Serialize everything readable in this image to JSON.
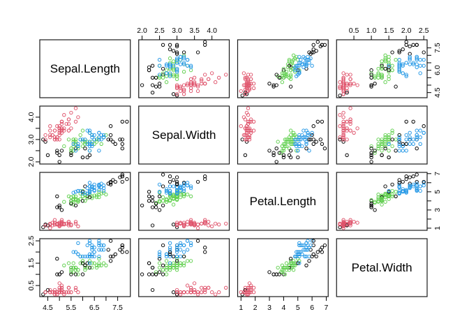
{
  "chart_data": {
    "type": "scatter",
    "subtype": "scatterplot-matrix",
    "title": "",
    "variables": [
      "Sepal.Length",
      "Sepal.Width",
      "Petal.Length",
      "Petal.Width"
    ],
    "grid": {
      "rows": 4,
      "cols": 4
    },
    "axis_ranges": [
      [
        4.156,
        8.044
      ],
      [
        1.904,
        4.496
      ],
      [
        0.764,
        7.136
      ],
      [
        0.004,
        2.596
      ]
    ],
    "axes": [
      {
        "side": "top",
        "col": 1,
        "row": 0,
        "ticks": [
          2.0,
          2.5,
          3.0,
          3.5,
          4.0
        ],
        "labels": [
          "2.0",
          "2.5",
          "3.0",
          "3.5",
          "4.0"
        ]
      },
      {
        "side": "top",
        "col": 3,
        "row": 0,
        "ticks": [
          0.5,
          1.0,
          1.5,
          2.0,
          2.5
        ],
        "labels": [
          "0.5",
          "1.0",
          "1.5",
          "2.0",
          "2.5"
        ]
      },
      {
        "side": "bottom",
        "col": 0,
        "row": 3,
        "ticks": [
          4.5,
          5.0,
          5.5,
          6.0,
          6.5,
          7.0,
          7.5
        ],
        "labels": [
          "4.5",
          "",
          "5.5",
          "",
          "6.5",
          "",
          "7.5"
        ]
      },
      {
        "side": "bottom",
        "col": 2,
        "row": 3,
        "ticks": [
          1,
          2,
          3,
          4,
          5,
          6,
          7
        ],
        "labels": [
          "1",
          "2",
          "3",
          "4",
          "5",
          "6",
          "7"
        ]
      },
      {
        "side": "right",
        "col": 3,
        "row": 0,
        "ticks": [
          4.5,
          5.0,
          5.5,
          6.0,
          6.5,
          7.0,
          7.5
        ],
        "labels": [
          "4.5",
          "",
          "",
          "6.0",
          "",
          "",
          "7.5"
        ]
      },
      {
        "side": "left",
        "col": 0,
        "row": 1,
        "ticks": [
          2.0,
          2.5,
          3.0,
          3.5,
          4.0
        ],
        "labels": [
          "2.0",
          "",
          "3.0",
          "",
          "4.0"
        ]
      },
      {
        "side": "right",
        "col": 3,
        "row": 2,
        "ticks": [
          1,
          2,
          3,
          4,
          5,
          6,
          7
        ],
        "labels": [
          "1",
          "",
          "3",
          "",
          "5",
          "",
          "7"
        ]
      },
      {
        "side": "left",
        "col": 0,
        "row": 3,
        "ticks": [
          0.5,
          1.0,
          1.5,
          2.0,
          2.5
        ],
        "labels": [
          "0.5",
          "",
          "1.5",
          "",
          "2.5"
        ]
      }
    ],
    "point_style": {
      "shape": "open-circle",
      "radius": 2.2,
      "stroke_width": 0.95
    },
    "panel_border_color": "#1b1b1b",
    "tick_color": "#000000",
    "label_color": "#000000",
    "group_colors": [
      "#000000",
      "#DF536B",
      "#61D04F",
      "#2297E6"
    ],
    "points": [
      [
        5.1,
        3.5,
        1.4,
        0.2,
        1
      ],
      [
        4.9,
        3.0,
        1.4,
        0.2,
        1
      ],
      [
        4.7,
        3.2,
        1.3,
        0.2,
        1
      ],
      [
        4.6,
        3.1,
        1.5,
        0.2,
        1
      ],
      [
        5.0,
        3.6,
        1.4,
        0.2,
        1
      ],
      [
        5.4,
        3.9,
        1.7,
        0.4,
        1
      ],
      [
        4.6,
        3.4,
        1.4,
        0.3,
        1
      ],
      [
        5.0,
        3.4,
        1.5,
        0.2,
        1
      ],
      [
        4.4,
        2.9,
        1.4,
        0.2,
        0
      ],
      [
        4.9,
        3.1,
        1.5,
        0.1,
        1
      ],
      [
        5.4,
        3.7,
        1.5,
        0.2,
        1
      ],
      [
        4.8,
        3.4,
        1.6,
        0.2,
        1
      ],
      [
        4.8,
        3.0,
        1.4,
        0.1,
        1
      ],
      [
        4.3,
        3.0,
        1.1,
        0.1,
        0
      ],
      [
        5.8,
        4.0,
        1.2,
        0.2,
        1
      ],
      [
        5.7,
        4.4,
        1.5,
        0.4,
        1
      ],
      [
        5.4,
        3.9,
        1.3,
        0.4,
        1
      ],
      [
        5.1,
        3.5,
        1.4,
        0.3,
        1
      ],
      [
        5.7,
        3.8,
        1.7,
        0.3,
        1
      ],
      [
        5.1,
        3.8,
        1.5,
        0.3,
        1
      ],
      [
        5.4,
        3.4,
        1.7,
        0.2,
        1
      ],
      [
        5.1,
        3.7,
        1.5,
        0.4,
        1
      ],
      [
        4.6,
        3.6,
        1.0,
        0.2,
        1
      ],
      [
        5.1,
        3.3,
        1.7,
        0.5,
        1
      ],
      [
        4.8,
        3.4,
        1.9,
        0.2,
        1
      ],
      [
        5.0,
        3.0,
        1.6,
        0.2,
        1
      ],
      [
        5.0,
        3.4,
        1.6,
        0.4,
        1
      ],
      [
        5.2,
        3.5,
        1.5,
        0.2,
        1
      ],
      [
        5.2,
        3.4,
        1.4,
        0.2,
        1
      ],
      [
        4.7,
        3.2,
        1.6,
        0.2,
        1
      ],
      [
        4.8,
        3.1,
        1.6,
        0.2,
        1
      ],
      [
        5.4,
        3.4,
        1.5,
        0.4,
        1
      ],
      [
        5.2,
        4.1,
        1.5,
        0.1,
        1
      ],
      [
        5.5,
        4.2,
        1.4,
        0.2,
        1
      ],
      [
        4.9,
        3.1,
        1.5,
        0.2,
        1
      ],
      [
        5.0,
        3.2,
        1.2,
        0.2,
        1
      ],
      [
        5.5,
        3.5,
        1.3,
        0.2,
        1
      ],
      [
        4.9,
        3.6,
        1.4,
        0.1,
        1
      ],
      [
        4.4,
        3.0,
        1.3,
        0.2,
        1
      ],
      [
        5.1,
        3.4,
        1.5,
        0.2,
        1
      ],
      [
        5.0,
        3.5,
        1.3,
        0.3,
        1
      ],
      [
        4.5,
        2.3,
        1.3,
        0.3,
        0
      ],
      [
        4.4,
        3.2,
        1.3,
        0.2,
        1
      ],
      [
        5.0,
        3.5,
        1.6,
        0.6,
        1
      ],
      [
        5.1,
        3.8,
        1.9,
        0.4,
        1
      ],
      [
        4.8,
        3.0,
        1.4,
        0.3,
        1
      ],
      [
        5.1,
        3.8,
        1.6,
        0.2,
        1
      ],
      [
        4.6,
        3.2,
        1.4,
        0.2,
        1
      ],
      [
        5.3,
        3.7,
        1.5,
        0.2,
        1
      ],
      [
        5.0,
        3.3,
        1.4,
        0.2,
        1
      ],
      [
        7.0,
        3.2,
        4.7,
        1.4,
        2
      ],
      [
        6.4,
        3.2,
        4.5,
        1.5,
        2
      ],
      [
        6.9,
        3.1,
        4.9,
        1.5,
        2
      ],
      [
        5.5,
        2.3,
        4.0,
        1.3,
        0
      ],
      [
        6.5,
        2.8,
        4.6,
        1.5,
        2
      ],
      [
        5.7,
        2.8,
        4.5,
        1.3,
        2
      ],
      [
        6.3,
        3.3,
        4.7,
        1.6,
        2
      ],
      [
        4.9,
        2.4,
        3.3,
        1.0,
        0
      ],
      [
        6.6,
        2.9,
        4.6,
        1.3,
        2
      ],
      [
        5.2,
        2.7,
        3.9,
        1.4,
        2
      ],
      [
        5.0,
        2.0,
        3.5,
        1.0,
        0
      ],
      [
        5.9,
        3.0,
        4.2,
        1.5,
        2
      ],
      [
        6.0,
        2.2,
        4.0,
        1.0,
        0
      ],
      [
        6.1,
        2.9,
        4.7,
        1.4,
        2
      ],
      [
        5.6,
        2.9,
        3.6,
        1.3,
        2
      ],
      [
        6.7,
        3.1,
        4.4,
        1.4,
        2
      ],
      [
        5.6,
        3.0,
        4.5,
        1.5,
        2
      ],
      [
        5.8,
        2.7,
        4.1,
        1.0,
        2
      ],
      [
        6.2,
        2.2,
        4.5,
        1.5,
        0
      ],
      [
        5.6,
        2.5,
        3.9,
        1.1,
        2
      ],
      [
        5.9,
        3.2,
        4.8,
        1.8,
        2
      ],
      [
        6.1,
        2.8,
        4.0,
        1.3,
        2
      ],
      [
        6.3,
        2.5,
        4.9,
        1.5,
        2
      ],
      [
        6.1,
        2.8,
        4.7,
        1.2,
        2
      ],
      [
        6.4,
        2.9,
        4.3,
        1.3,
        2
      ],
      [
        6.6,
        3.0,
        4.4,
        1.4,
        2
      ],
      [
        6.8,
        2.8,
        4.8,
        1.4,
        2
      ],
      [
        6.7,
        3.0,
        5.0,
        1.7,
        2
      ],
      [
        6.0,
        2.9,
        4.5,
        1.5,
        2
      ],
      [
        5.7,
        2.6,
        3.5,
        1.0,
        0
      ],
      [
        5.5,
        2.4,
        3.8,
        1.1,
        2
      ],
      [
        5.5,
        2.4,
        3.7,
        1.0,
        0
      ],
      [
        5.8,
        2.7,
        3.9,
        1.2,
        2
      ],
      [
        6.0,
        2.7,
        5.1,
        1.6,
        2
      ],
      [
        5.4,
        3.0,
        4.5,
        1.5,
        2
      ],
      [
        6.0,
        3.4,
        4.5,
        1.6,
        2
      ],
      [
        6.7,
        3.1,
        4.7,
        1.5,
        2
      ],
      [
        6.3,
        2.3,
        4.4,
        1.3,
        0
      ],
      [
        5.6,
        3.0,
        4.1,
        1.3,
        2
      ],
      [
        5.5,
        2.5,
        4.0,
        1.3,
        2
      ],
      [
        5.5,
        2.6,
        4.4,
        1.2,
        2
      ],
      [
        6.1,
        3.0,
        4.6,
        1.4,
        2
      ],
      [
        5.8,
        2.6,
        4.0,
        1.2,
        2
      ],
      [
        5.0,
        2.3,
        3.3,
        1.0,
        0
      ],
      [
        5.6,
        2.7,
        4.2,
        1.3,
        2
      ],
      [
        5.7,
        3.0,
        4.2,
        1.2,
        2
      ],
      [
        5.7,
        2.9,
        4.2,
        1.3,
        2
      ],
      [
        6.2,
        2.9,
        4.3,
        1.3,
        2
      ],
      [
        5.1,
        2.5,
        3.0,
        1.1,
        0
      ],
      [
        5.7,
        2.8,
        4.1,
        1.3,
        2
      ],
      [
        6.3,
        3.3,
        6.0,
        2.5,
        3
      ],
      [
        5.8,
        2.7,
        5.1,
        1.9,
        3
      ],
      [
        7.1,
        3.0,
        5.9,
        2.1,
        0
      ],
      [
        6.3,
        2.9,
        5.6,
        1.8,
        3
      ],
      [
        6.5,
        3.0,
        5.8,
        2.2,
        3
      ],
      [
        7.6,
        3.0,
        6.6,
        2.1,
        0
      ],
      [
        4.9,
        2.5,
        4.5,
        1.7,
        0
      ],
      [
        7.3,
        2.9,
        6.3,
        1.8,
        0
      ],
      [
        6.7,
        2.5,
        5.8,
        1.8,
        3
      ],
      [
        7.2,
        3.6,
        6.1,
        2.5,
        0
      ],
      [
        6.5,
        3.2,
        5.1,
        2.0,
        3
      ],
      [
        6.4,
        2.7,
        5.3,
        1.9,
        3
      ],
      [
        6.8,
        3.0,
        5.5,
        2.1,
        3
      ],
      [
        5.7,
        2.5,
        5.0,
        2.0,
        3
      ],
      [
        5.8,
        2.8,
        5.1,
        2.4,
        3
      ],
      [
        6.4,
        3.2,
        5.3,
        2.3,
        3
      ],
      [
        6.5,
        3.0,
        5.5,
        1.8,
        3
      ],
      [
        7.7,
        3.8,
        6.7,
        2.2,
        0
      ],
      [
        7.7,
        2.6,
        6.9,
        2.3,
        0
      ],
      [
        6.0,
        2.2,
        5.0,
        1.5,
        0
      ],
      [
        6.9,
        3.2,
        5.7,
        2.3,
        3
      ],
      [
        5.6,
        2.8,
        4.9,
        2.0,
        3
      ],
      [
        7.7,
        2.8,
        6.7,
        2.0,
        0
      ],
      [
        6.3,
        2.7,
        4.9,
        1.8,
        3
      ],
      [
        6.7,
        3.3,
        5.7,
        2.1,
        3
      ],
      [
        7.2,
        3.2,
        6.0,
        1.8,
        0
      ],
      [
        6.2,
        2.8,
        4.8,
        1.8,
        3
      ],
      [
        6.1,
        3.0,
        4.9,
        1.8,
        3
      ],
      [
        6.4,
        2.8,
        5.6,
        2.1,
        3
      ],
      [
        7.2,
        3.0,
        5.8,
        1.6,
        0
      ],
      [
        7.4,
        2.8,
        6.1,
        1.9,
        0
      ],
      [
        7.9,
        3.8,
        6.4,
        2.0,
        0
      ],
      [
        6.4,
        2.8,
        5.6,
        2.2,
        3
      ],
      [
        6.3,
        2.8,
        5.1,
        1.5,
        3
      ],
      [
        6.1,
        2.6,
        5.6,
        1.4,
        0
      ],
      [
        7.7,
        3.0,
        6.1,
        2.3,
        0
      ],
      [
        6.3,
        3.4,
        5.6,
        2.4,
        3
      ],
      [
        6.4,
        3.1,
        5.5,
        1.8,
        3
      ],
      [
        6.0,
        3.0,
        4.8,
        1.8,
        3
      ],
      [
        6.9,
        3.1,
        5.4,
        2.1,
        3
      ],
      [
        6.7,
        3.1,
        5.6,
        2.4,
        3
      ],
      [
        6.9,
        3.1,
        5.1,
        2.3,
        3
      ],
      [
        5.8,
        2.7,
        5.1,
        1.9,
        3
      ],
      [
        6.8,
        3.2,
        5.9,
        2.3,
        3
      ],
      [
        6.7,
        3.3,
        5.7,
        2.5,
        3
      ],
      [
        6.7,
        3.0,
        5.2,
        2.3,
        3
      ],
      [
        6.3,
        2.5,
        5.0,
        1.9,
        3
      ],
      [
        6.5,
        3.0,
        5.2,
        2.0,
        3
      ],
      [
        6.2,
        3.4,
        5.4,
        2.3,
        3
      ],
      [
        5.9,
        3.0,
        5.1,
        1.8,
        3
      ]
    ]
  }
}
